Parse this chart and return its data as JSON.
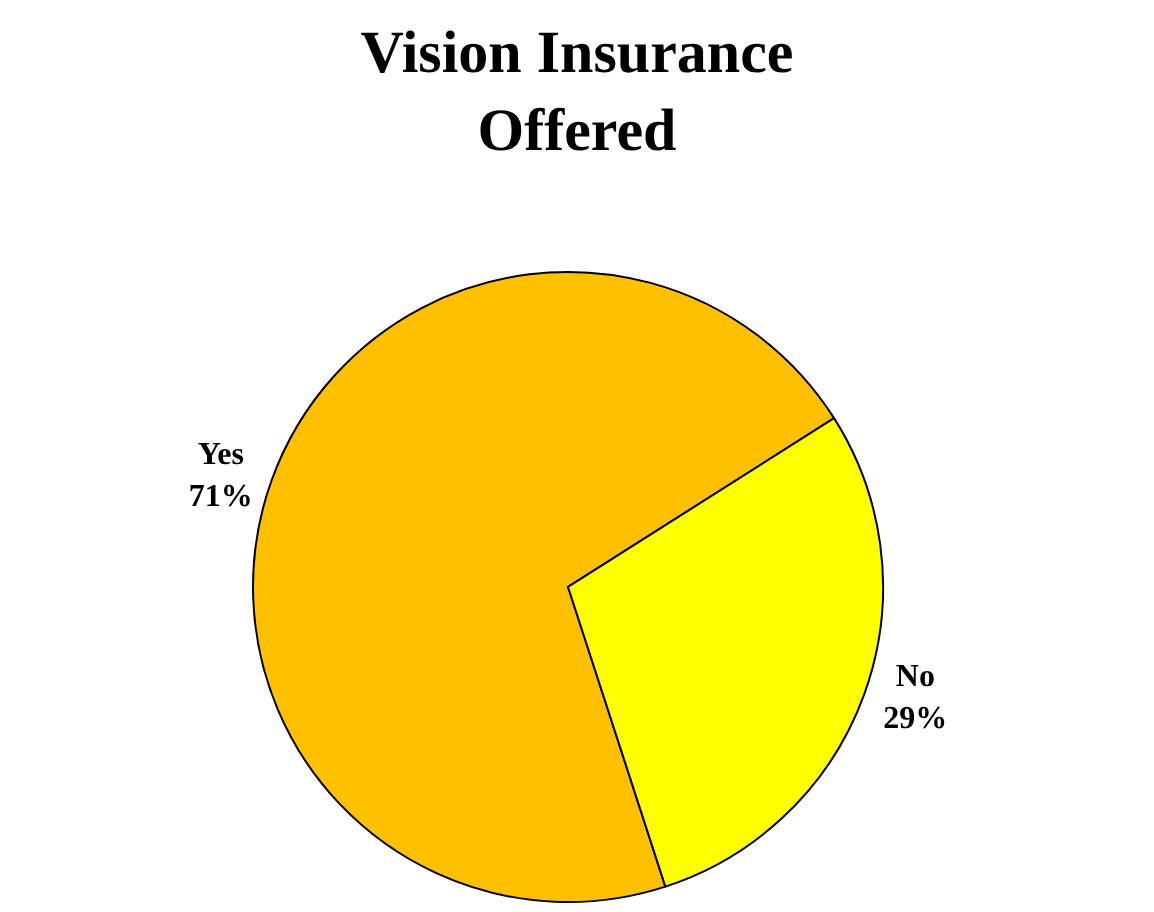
{
  "chart_data": {
    "type": "pie",
    "title": "Vision Insurance Offered",
    "categories": [
      "Yes",
      "No"
    ],
    "values": [
      71,
      29
    ],
    "colors": [
      "#ffc000",
      "#ffff00"
    ],
    "value_labels": [
      "71%",
      "29%"
    ],
    "legend": false
  }
}
